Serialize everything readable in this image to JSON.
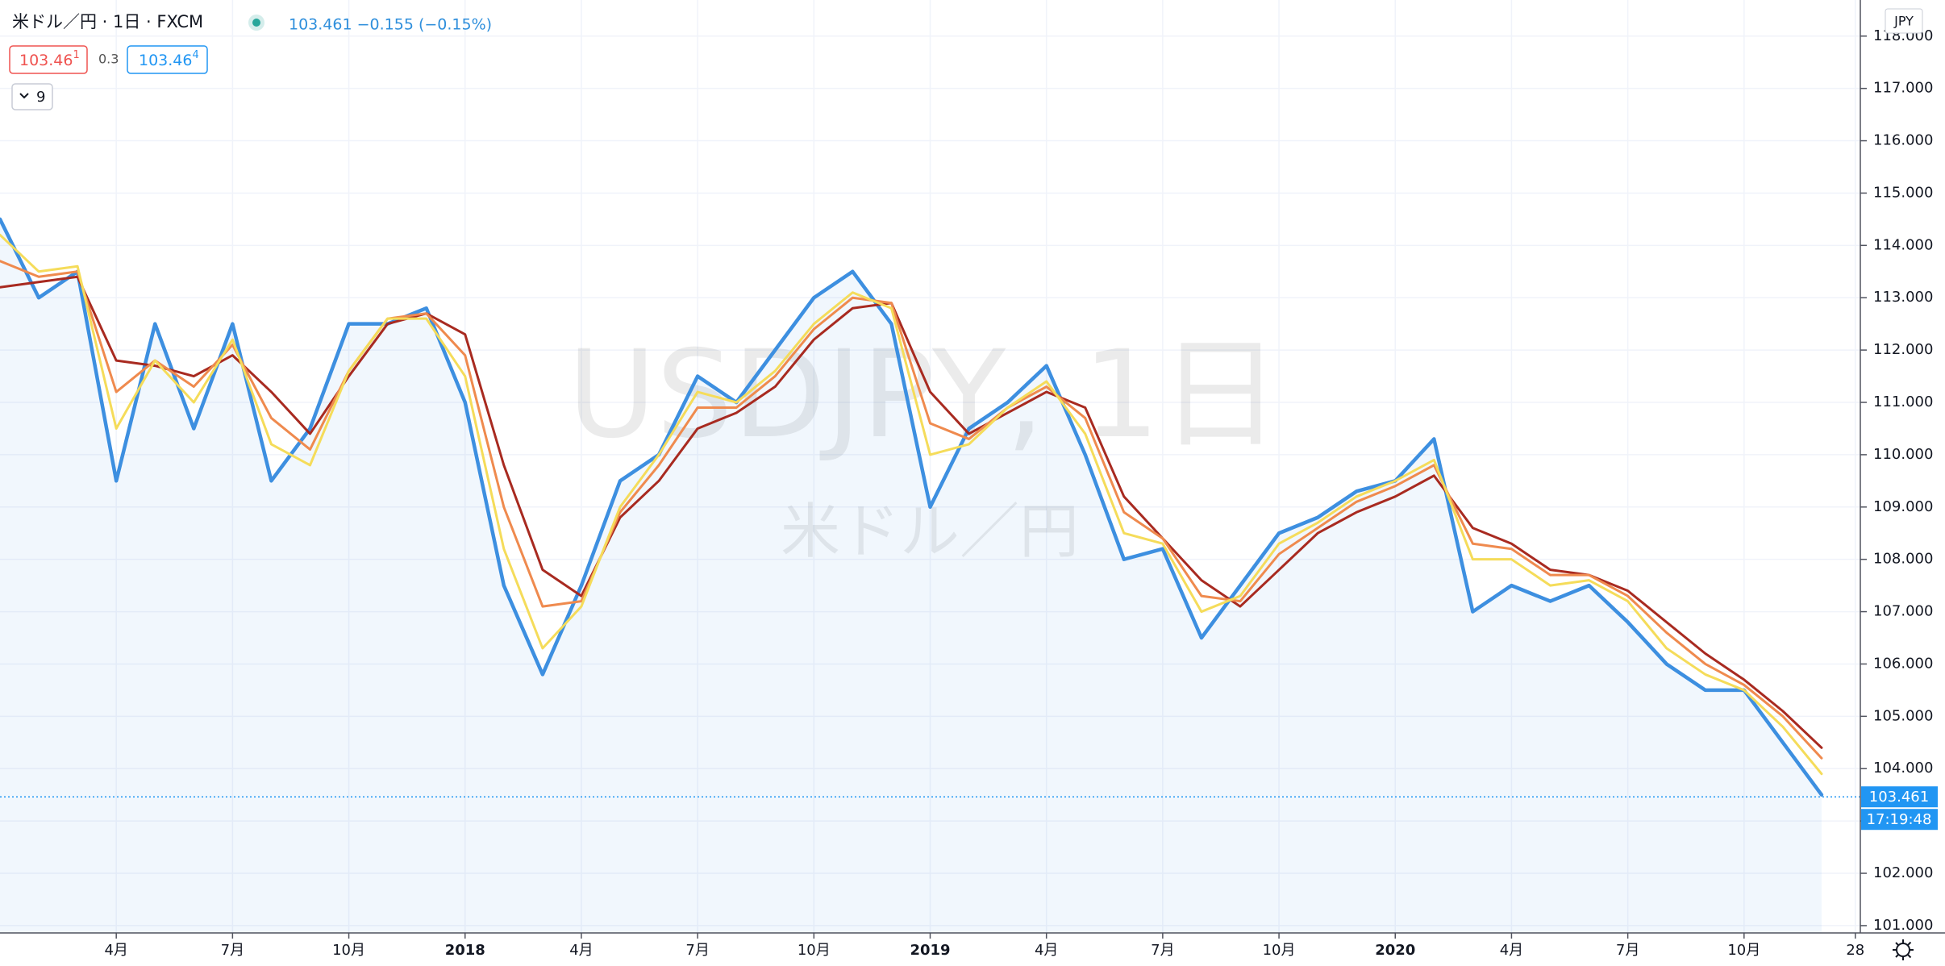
{
  "chart_data": {
    "type": "line",
    "title": "米ドル／円 · 1日 · FXCM",
    "change": "103.461 −0.155 (−0.15%)",
    "bid": {
      "main": "103.46",
      "sup": "1"
    },
    "spread": "0.3",
    "ask": {
      "main": "103.46",
      "sup": "4"
    },
    "indicator_count": "9",
    "watermark": "USDJPY, 1日",
    "watermark_sub": "米ドル／円",
    "currency": "JPY",
    "last": {
      "value": 103.461,
      "label": "103.461"
    },
    "last_time": "17:19:48",
    "x": [
      "2017-01",
      "2017-02",
      "2017-03",
      "2017-04",
      "2017-05",
      "2017-06",
      "2017-07",
      "2017-08",
      "2017-09",
      "2017-10",
      "2017-11",
      "2017-12",
      "2018-01",
      "2018-02",
      "2018-03",
      "2018-04",
      "2018-05",
      "2018-06",
      "2018-07",
      "2018-08",
      "2018-09",
      "2018-10",
      "2018-11",
      "2018-12",
      "2019-01",
      "2019-02",
      "2019-03",
      "2019-04",
      "2019-05",
      "2019-06",
      "2019-07",
      "2019-08",
      "2019-09",
      "2019-10",
      "2019-11",
      "2019-12",
      "2020-01",
      "2020-02",
      "2020-03",
      "2020-04",
      "2020-05",
      "2020-06",
      "2020-07",
      "2020-08",
      "2020-09",
      "2020-10",
      "2020-11",
      "2020-12"
    ],
    "series": [
      {
        "color": "#3d8fe0",
        "values": [
          114.5,
          113,
          113.5,
          109.5,
          112.5,
          110.5,
          112.5,
          109.5,
          110.5,
          112.5,
          112.5,
          112.8,
          111,
          107.5,
          105.8,
          107.5,
          109.5,
          110,
          111.5,
          111,
          112,
          113,
          113.5,
          112.5,
          109,
          110.5,
          111,
          111.7,
          110,
          108,
          108.2,
          106.5,
          107.5,
          108.5,
          108.8,
          109.3,
          109.5,
          110.3,
          107,
          107.5,
          107.2,
          107.5,
          106.8,
          106,
          105.5,
          105.5,
          104.5,
          103.5
        ]
      },
      {
        "color": "#a82a20",
        "values": [
          113.2,
          113.3,
          113.4,
          111.8,
          111.7,
          111.5,
          111.9,
          111.2,
          110.4,
          111.5,
          112.5,
          112.7,
          112.3,
          109.8,
          107.8,
          107.3,
          108.8,
          109.5,
          110.5,
          110.8,
          111.3,
          112.2,
          112.8,
          112.9,
          111.2,
          110.4,
          110.8,
          111.2,
          110.9,
          109.2,
          108.4,
          107.6,
          107.1,
          107.8,
          108.5,
          108.9,
          109.2,
          109.6,
          108.6,
          108.3,
          107.8,
          107.7,
          107.4,
          106.8,
          106.2,
          105.7,
          105.1,
          104.4
        ]
      },
      {
        "color": "#ef8a4e",
        "values": [
          113.7,
          113.4,
          113.5,
          111.2,
          111.8,
          111.3,
          112.1,
          110.7,
          110.1,
          111.6,
          112.6,
          112.7,
          111.9,
          109,
          107.1,
          107.2,
          108.9,
          109.8,
          110.9,
          110.9,
          111.5,
          112.4,
          113,
          112.9,
          110.6,
          110.3,
          110.9,
          111.3,
          110.7,
          108.9,
          108.4,
          107.3,
          107.2,
          108.1,
          108.6,
          109.1,
          109.4,
          109.8,
          108.3,
          108.2,
          107.7,
          107.7,
          107.3,
          106.6,
          106,
          105.6,
          105,
          104.2
        ]
      },
      {
        "color": "#f5dc5a",
        "values": [
          114.2,
          113.5,
          113.6,
          110.5,
          111.8,
          111,
          112.2,
          110.2,
          109.8,
          111.6,
          112.6,
          112.6,
          111.5,
          108.2,
          106.3,
          107.1,
          109,
          110,
          111.2,
          111,
          111.6,
          112.5,
          113.1,
          112.8,
          110,
          110.2,
          110.9,
          111.4,
          110.4,
          108.5,
          108.3,
          107,
          107.3,
          108.3,
          108.7,
          109.2,
          109.5,
          109.9,
          108,
          108,
          107.5,
          107.6,
          107.2,
          106.3,
          105.8,
          105.5,
          104.8,
          103.9
        ]
      }
    ],
    "xlim": [
      "2017-01",
      "2021-01"
    ],
    "xticks": [
      {
        "value": "2017-04",
        "label": "4月"
      },
      {
        "value": "2017-07",
        "label": "7月"
      },
      {
        "value": "2017-10",
        "label": "10月"
      },
      {
        "value": "2018-01",
        "label": "2018"
      },
      {
        "value": "2018-04",
        "label": "4月"
      },
      {
        "value": "2018-07",
        "label": "7月"
      },
      {
        "value": "2018-10",
        "label": "10月"
      },
      {
        "value": "2019-01",
        "label": "2019"
      },
      {
        "value": "2019-04",
        "label": "4月"
      },
      {
        "value": "2019-07",
        "label": "7月"
      },
      {
        "value": "2019-10",
        "label": "10月"
      },
      {
        "value": "2020-01",
        "label": "2020"
      },
      {
        "value": "2020-04",
        "label": "4月"
      },
      {
        "value": "2020-07",
        "label": "7月"
      },
      {
        "value": "2020-10",
        "label": "10月"
      },
      {
        "value": "2020-12-28",
        "label": "28"
      }
    ],
    "ylim": [
      100.86,
      118.69
    ],
    "yticks": [
      {
        "value": 101,
        "label": "101.000"
      },
      {
        "value": 102,
        "label": "102.000"
      },
      {
        "value": 103,
        "label": "103.000"
      },
      {
        "value": 104,
        "label": "104.000"
      },
      {
        "value": 105,
        "label": "105.000"
      },
      {
        "value": 106,
        "label": "106.000"
      },
      {
        "value": 107,
        "label": "107.000"
      },
      {
        "value": 108,
        "label": "108.000"
      },
      {
        "value": 109,
        "label": "109.000"
      },
      {
        "value": 110,
        "label": "110.000"
      },
      {
        "value": 111,
        "label": "111.000"
      },
      {
        "value": 112,
        "label": "112.000"
      },
      {
        "value": 113,
        "label": "113.000"
      },
      {
        "value": 114,
        "label": "114.000"
      },
      {
        "value": 115,
        "label": "115.000"
      },
      {
        "value": 116,
        "label": "116.000"
      },
      {
        "value": 117,
        "label": "117.000"
      },
      {
        "value": 118,
        "label": "118.000"
      }
    ],
    "grid": true
  }
}
